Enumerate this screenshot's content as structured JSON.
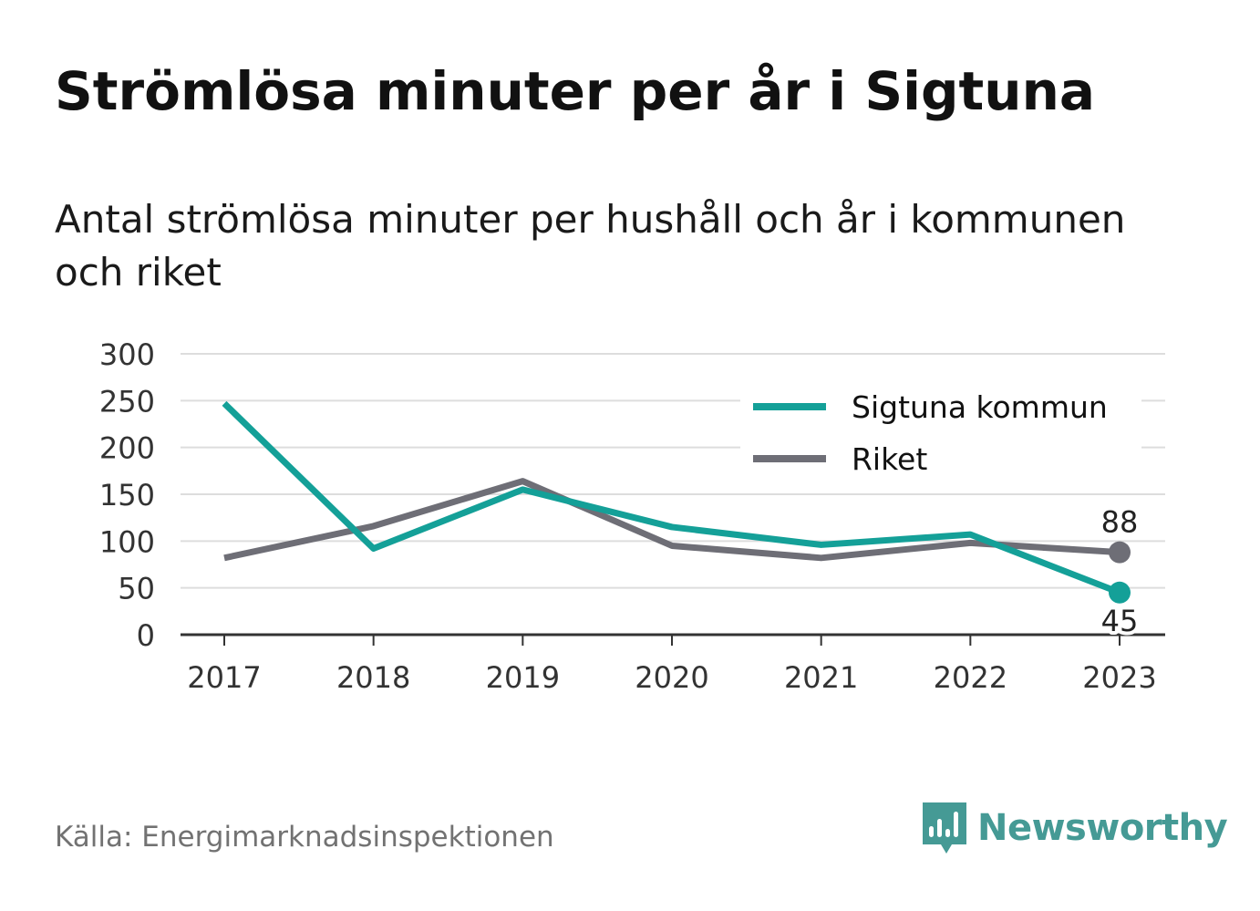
{
  "title": "Strömlösa minuter per år i Sigtuna",
  "subtitle": "Antal strömlösa minuter per hushåll och år i kommunen och riket",
  "source": "Källa: Energimarknadsinspektionen",
  "brand": {
    "name": "Newsworthy",
    "icon": "bar-chart-speech-bubble-icon",
    "color": "#459a95"
  },
  "chart_data": {
    "type": "line",
    "x": [
      "2017",
      "2018",
      "2019",
      "2020",
      "2021",
      "2022",
      "2023"
    ],
    "ylim": [
      0,
      300
    ],
    "yticks": [
      0,
      50,
      100,
      150,
      200,
      250,
      300
    ],
    "grid": true,
    "legend_position": "top-right",
    "series": [
      {
        "name": "Sigtuna kommun",
        "color": "#14a098",
        "values": [
          247,
          92,
          155,
          115,
          96,
          107,
          45
        ],
        "end_label": "45"
      },
      {
        "name": "Riket",
        "color": "#6e6e76",
        "values": [
          82,
          116,
          164,
          95,
          82,
          98,
          88
        ],
        "end_label": "88"
      }
    ]
  }
}
